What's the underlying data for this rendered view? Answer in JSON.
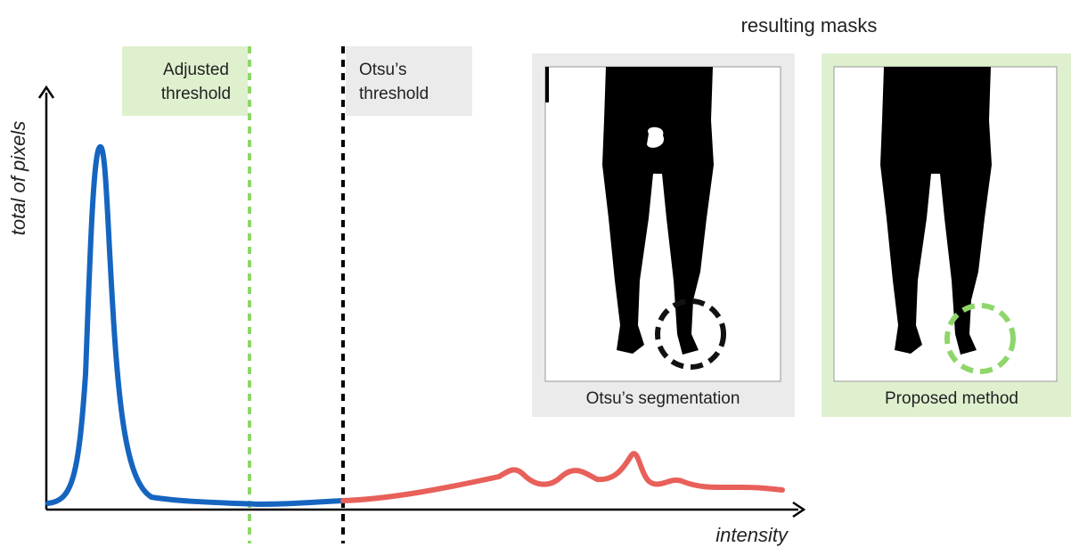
{
  "header": {
    "title": "resulting masks"
  },
  "histogram": {
    "y_axis_label": "total of pixels",
    "x_axis_label": "intensity"
  },
  "thresholds": {
    "adjusted": [
      "Adjusted",
      "threshold"
    ],
    "otsu": [
      "Otsu’s",
      "threshold"
    ]
  },
  "panels": [
    {
      "caption": "Otsu’s segmentation"
    },
    {
      "caption": "Proposed method"
    }
  ]
}
